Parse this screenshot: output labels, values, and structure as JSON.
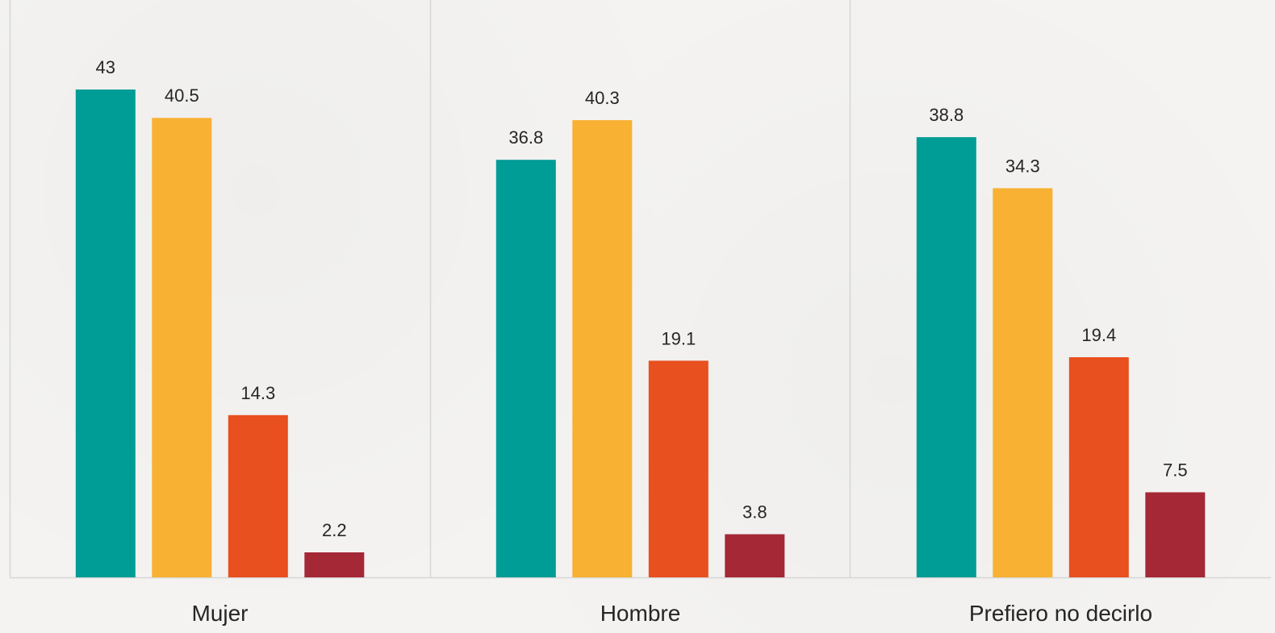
{
  "chart_data": {
    "type": "bar",
    "categories": [
      "Mujer",
      "Hombre",
      "Prefiero no decirlo"
    ],
    "series": [
      {
        "values": [
          43,
          36.8,
          38.8
        ],
        "color": "#009c96"
      },
      {
        "values": [
          40.5,
          40.3,
          34.3
        ],
        "color": "#f8b133"
      },
      {
        "values": [
          14.3,
          19.1,
          19.4
        ],
        "color": "#e8501f"
      },
      {
        "values": [
          2.2,
          3.8,
          7.5
        ],
        "color": "#a52836"
      }
    ],
    "value_labels": [
      [
        "43",
        "36.8",
        "38.8"
      ],
      [
        "40.5",
        "40.3",
        "34.3"
      ],
      [
        "14.3",
        "19.1",
        "19.4"
      ],
      [
        "2.2",
        "3.8",
        "7.5"
      ]
    ],
    "ylim": [
      0,
      47
    ],
    "grid": false,
    "legend": "none",
    "colors": {
      "background": "#f4f3f1",
      "axis": "#d6d6d6",
      "text": "#262626"
    }
  }
}
